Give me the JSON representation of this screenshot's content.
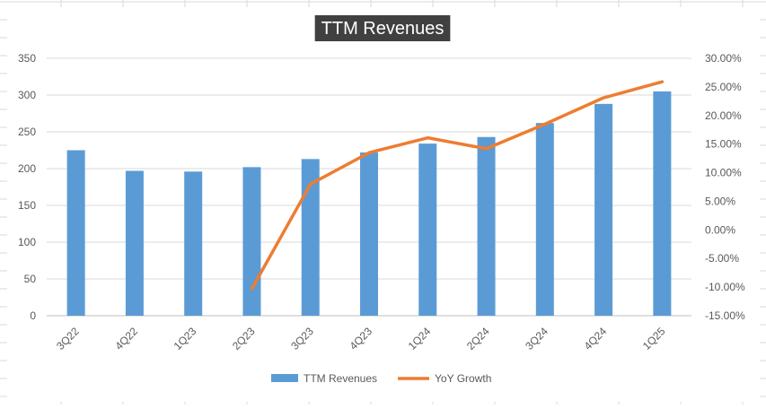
{
  "chart_data": {
    "type": "bar",
    "title": "TTM Revenues",
    "categories": [
      "3Q22",
      "4Q22",
      "1Q23",
      "2Q23",
      "3Q23",
      "4Q23",
      "1Q24",
      "2Q24",
      "3Q24",
      "4Q24",
      "1Q25"
    ],
    "series": [
      {
        "name": "TTM Revenues",
        "type": "bar",
        "axis": "left",
        "color": "#5B9BD5",
        "values": [
          225,
          197,
          196,
          202,
          213,
          222,
          234,
          243,
          262,
          288,
          305
        ]
      },
      {
        "name": "YoY Growth",
        "type": "line",
        "axis": "right",
        "color": "#ED7D31",
        "values": [
          null,
          null,
          null,
          -10.3,
          8.0,
          13.5,
          16.1,
          14.2,
          18.5,
          23.1,
          25.9
        ]
      }
    ],
    "y_left": {
      "min": 0,
      "max": 350,
      "step": 50,
      "tick_labels": [
        "0",
        "50",
        "100",
        "150",
        "200",
        "250",
        "300",
        "350"
      ]
    },
    "y_right": {
      "min": -15,
      "max": 30,
      "step": 5,
      "tick_labels": [
        "-15.00%",
        "-10.00%",
        "-5.00%",
        "0.00%",
        "5.00%",
        "10.00%",
        "15.00%",
        "20.00%",
        "25.00%",
        "30.00%"
      ]
    },
    "grid": true,
    "legend_position": "bottom",
    "title_style": {
      "background": "#404040",
      "color": "#ffffff"
    }
  }
}
